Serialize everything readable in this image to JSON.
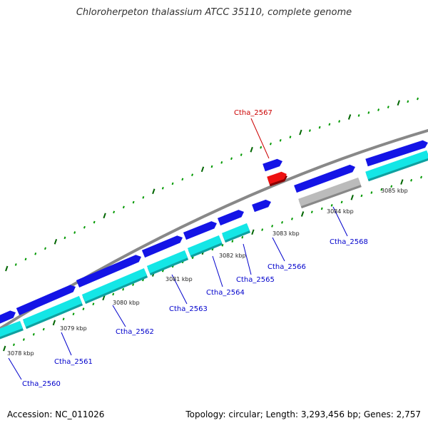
{
  "title": "Chloroherpeton thalassium ATCC 35110, complete genome",
  "footer": {
    "accession": "Accession: NC_011026",
    "topology": "Topology: circular; Length: 3,293,456 bp; Genes: 2,757"
  },
  "colors": {
    "backbone": "#888888",
    "forward_gene": "#1414e6",
    "forward_gene_highlight": "#5a5aff",
    "reverse_gene": "#14e6e6",
    "reverse_shadow": "#0fa0a0",
    "selected_gene": "#ee1111",
    "pseudo_gene": "#bbbbbb",
    "tick_major": "#006600",
    "tick_minor": "#009900",
    "label_blue": "#0000cc",
    "label_red": "#cc0000"
  },
  "scale_labels": [
    "3078 kbp",
    "3079 kbp",
    "3080 kbp",
    "3081 kbp",
    "3082 kbp",
    "3083 kbp",
    "3084 kbp",
    "3085 kbp"
  ],
  "gene_labels": [
    "Ctha_2560",
    "Ctha_2561",
    "Ctha_2562",
    "Ctha_2563",
    "Ctha_2564",
    "Ctha_2565",
    "Ctha_2566",
    "Ctha_2567",
    "Ctha_2568"
  ],
  "selected_gene": "Ctha_2567"
}
